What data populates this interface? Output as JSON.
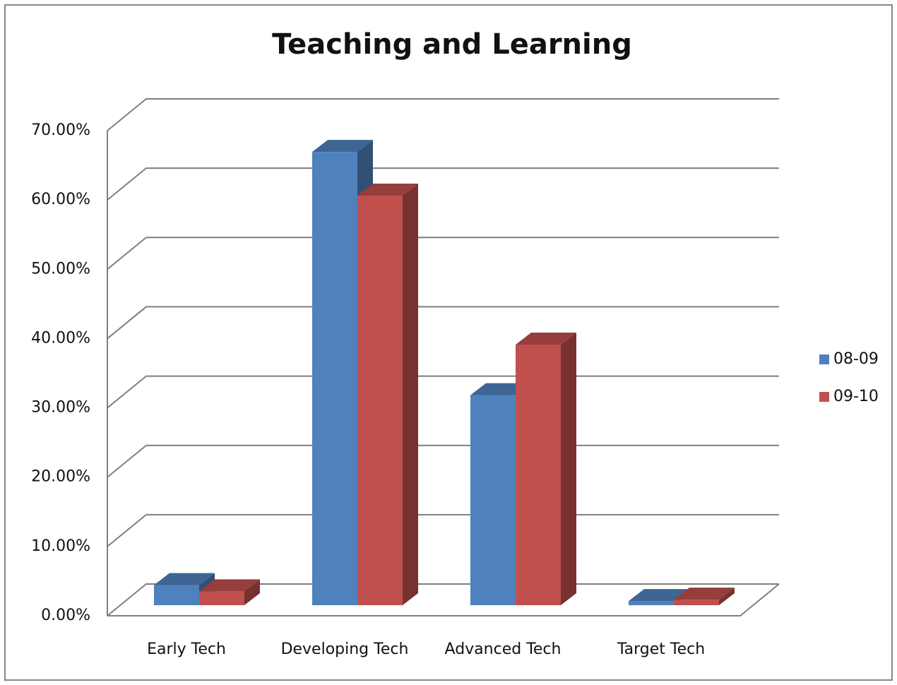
{
  "chart_data": {
    "type": "bar3d",
    "title": "Teaching and Learning",
    "categories": [
      "Early Tech",
      "Developing Tech",
      "Advanced Tech",
      "Target Tech"
    ],
    "series": [
      {
        "name": "08-09",
        "color": "#4f81bd",
        "values": [
          2.9,
          65.4,
          30.3,
          0.6
        ]
      },
      {
        "name": "09-10",
        "color": "#c0504d",
        "values": [
          2.0,
          59.1,
          37.6,
          0.8
        ]
      }
    ],
    "ylim": [
      0,
      70
    ],
    "yticks": [
      {
        "value": 0,
        "label": "0.00%"
      },
      {
        "value": 10,
        "label": "10.00%"
      },
      {
        "value": 20,
        "label": "20.00%"
      },
      {
        "value": 30,
        "label": "30.00%"
      },
      {
        "value": 40,
        "label": "40.00%"
      },
      {
        "value": 50,
        "label": "50.00%"
      },
      {
        "value": 60,
        "label": "60.00%"
      },
      {
        "value": 70,
        "label": "70.00%"
      }
    ],
    "grid": true,
    "legend": "right"
  }
}
